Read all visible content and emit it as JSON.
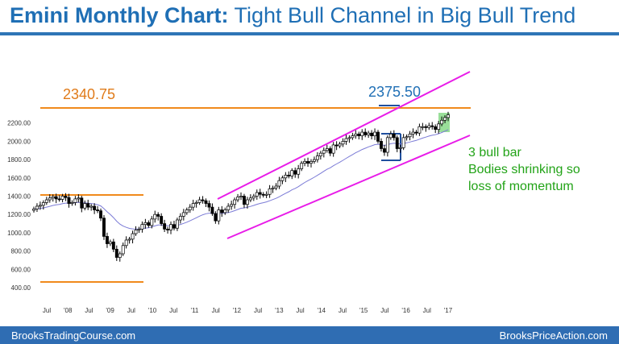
{
  "header": {
    "title_bold": "Emini Monthly Chart:",
    "title_rest": " Tight Bull Channel in Big Bull Trend"
  },
  "annotations": {
    "price_2340": "2340.75",
    "price_2375": "2375.50",
    "note_line1": "3 bull bar",
    "note_line2": "Bodies shrinking so",
    "note_line3": "loss of momentum"
  },
  "footer": {
    "left": "BrooksTradingCourse.com",
    "right": "BrooksPriceAction.com"
  },
  "colors": {
    "title": "#1f6fb5",
    "orange_line": "#f08a1c",
    "channel_line": "#e81ce8",
    "ema": "#7b7bd6",
    "note": "#22a317",
    "footer_bg": "#2f6db3",
    "bar_bull": "#ffffff",
    "bar_bear": "#000000"
  },
  "chart_data": {
    "type": "candlestick",
    "y_ticks": [
      "400.00",
      "600.00",
      "800.00",
      "1000.00",
      "1200.00",
      "1400.00",
      "1600.00",
      "1800.00",
      "2000.00",
      "2200.00"
    ],
    "x_ticks": [
      "Jul",
      "'08",
      "Jul",
      "'09",
      "Jul",
      "'10",
      "Jul",
      "'11",
      "Jul",
      "'12",
      "Jul",
      "'13",
      "Jul",
      "'14",
      "Jul",
      "'15",
      "Jul",
      "'16",
      "Jul",
      "'17"
    ],
    "ylim": [
      350,
      2500
    ],
    "grid": false,
    "closes": [
      1260,
      1290,
      1300,
      1330,
      1360,
      1380,
      1395,
      1370,
      1365,
      1400,
      1385,
      1320,
      1330,
      1370,
      1380,
      1270,
      1320,
      1280,
      1290,
      1250,
      1240,
      1160,
      960,
      880,
      900,
      820,
      730,
      770,
      860,
      920,
      930,
      990,
      1030,
      1040,
      1090,
      1110,
      1080,
      1150,
      1200,
      1180,
      1100,
      1040,
      1030,
      1090,
      1050,
      1140,
      1180,
      1220,
      1250,
      1280,
      1320,
      1330,
      1360,
      1350,
      1320,
      1280,
      1210,
      1130,
      1250,
      1220,
      1250,
      1290,
      1310,
      1360,
      1390,
      1400,
      1310,
      1360,
      1380,
      1400,
      1440,
      1420,
      1410,
      1420,
      1480,
      1490,
      1510,
      1570,
      1600,
      1630,
      1620,
      1680,
      1640,
      1700,
      1760,
      1780,
      1760,
      1780,
      1800,
      1840,
      1870,
      1900,
      1920,
      1870,
      1960,
      1950,
      1970,
      2000,
      2030,
      2040,
      2060,
      2080,
      2060,
      2100,
      2070,
      2090,
      2060,
      2100,
      2000,
      1920,
      1880,
      2040,
      2080,
      2040,
      1920,
      1930,
      2040,
      2050,
      2080,
      2100,
      2090,
      2160,
      2160,
      2150,
      2170,
      2160,
      2130,
      2190,
      2230,
      2260,
      2290
    ]
  }
}
